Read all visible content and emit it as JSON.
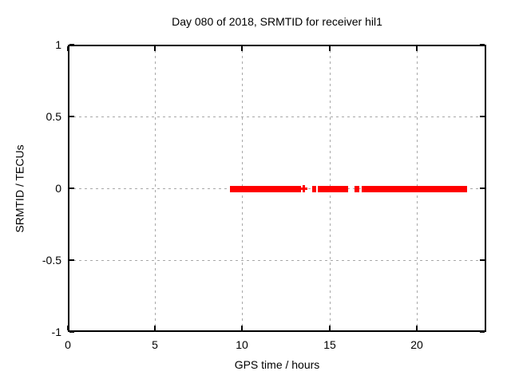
{
  "window": {
    "background": "#ffffff"
  },
  "chart_data": {
    "type": "scatter",
    "title": "Day 080 of 2018, SRMTID for receiver hil1",
    "xlabel": "GPS time / hours",
    "ylabel": "SRMTID / TECUs",
    "xlim": [
      0,
      24
    ],
    "ylim": [
      -1,
      1
    ],
    "x_ticks": [
      {
        "value": 0,
        "label": "0"
      },
      {
        "value": 5,
        "label": "5"
      },
      {
        "value": 10,
        "label": "10"
      },
      {
        "value": 15,
        "label": "15"
      },
      {
        "value": 20,
        "label": "20"
      }
    ],
    "y_ticks": [
      {
        "value": -1,
        "label": "-1"
      },
      {
        "value": -0.5,
        "label": "-0.5"
      },
      {
        "value": 0,
        "label": "0"
      },
      {
        "value": 0.5,
        "label": "0.5"
      },
      {
        "value": 1,
        "label": "1"
      }
    ],
    "grid": {
      "x_values": [
        5,
        10,
        15,
        20
      ],
      "y_values": [
        -0.5,
        0,
        0.5
      ]
    },
    "legend": "none",
    "series": [
      {
        "name": "SRMTID",
        "marker": "plus",
        "color": "#ff0000",
        "y_value": 0,
        "segments_x_hours": [
          [
            9.3,
            13.37
          ],
          [
            14.03,
            14.27
          ],
          [
            14.33,
            16.08
          ],
          [
            16.45,
            16.72
          ],
          [
            16.86,
            22.9
          ]
        ],
        "isolated_points_x_hours": [
          13.56
        ]
      }
    ]
  },
  "colors": {
    "data_red": "#ff0000",
    "grid_gray": "#a8a8a8",
    "axis_black": "#000000",
    "text_black": "#000000",
    "background": "#ffffff"
  }
}
